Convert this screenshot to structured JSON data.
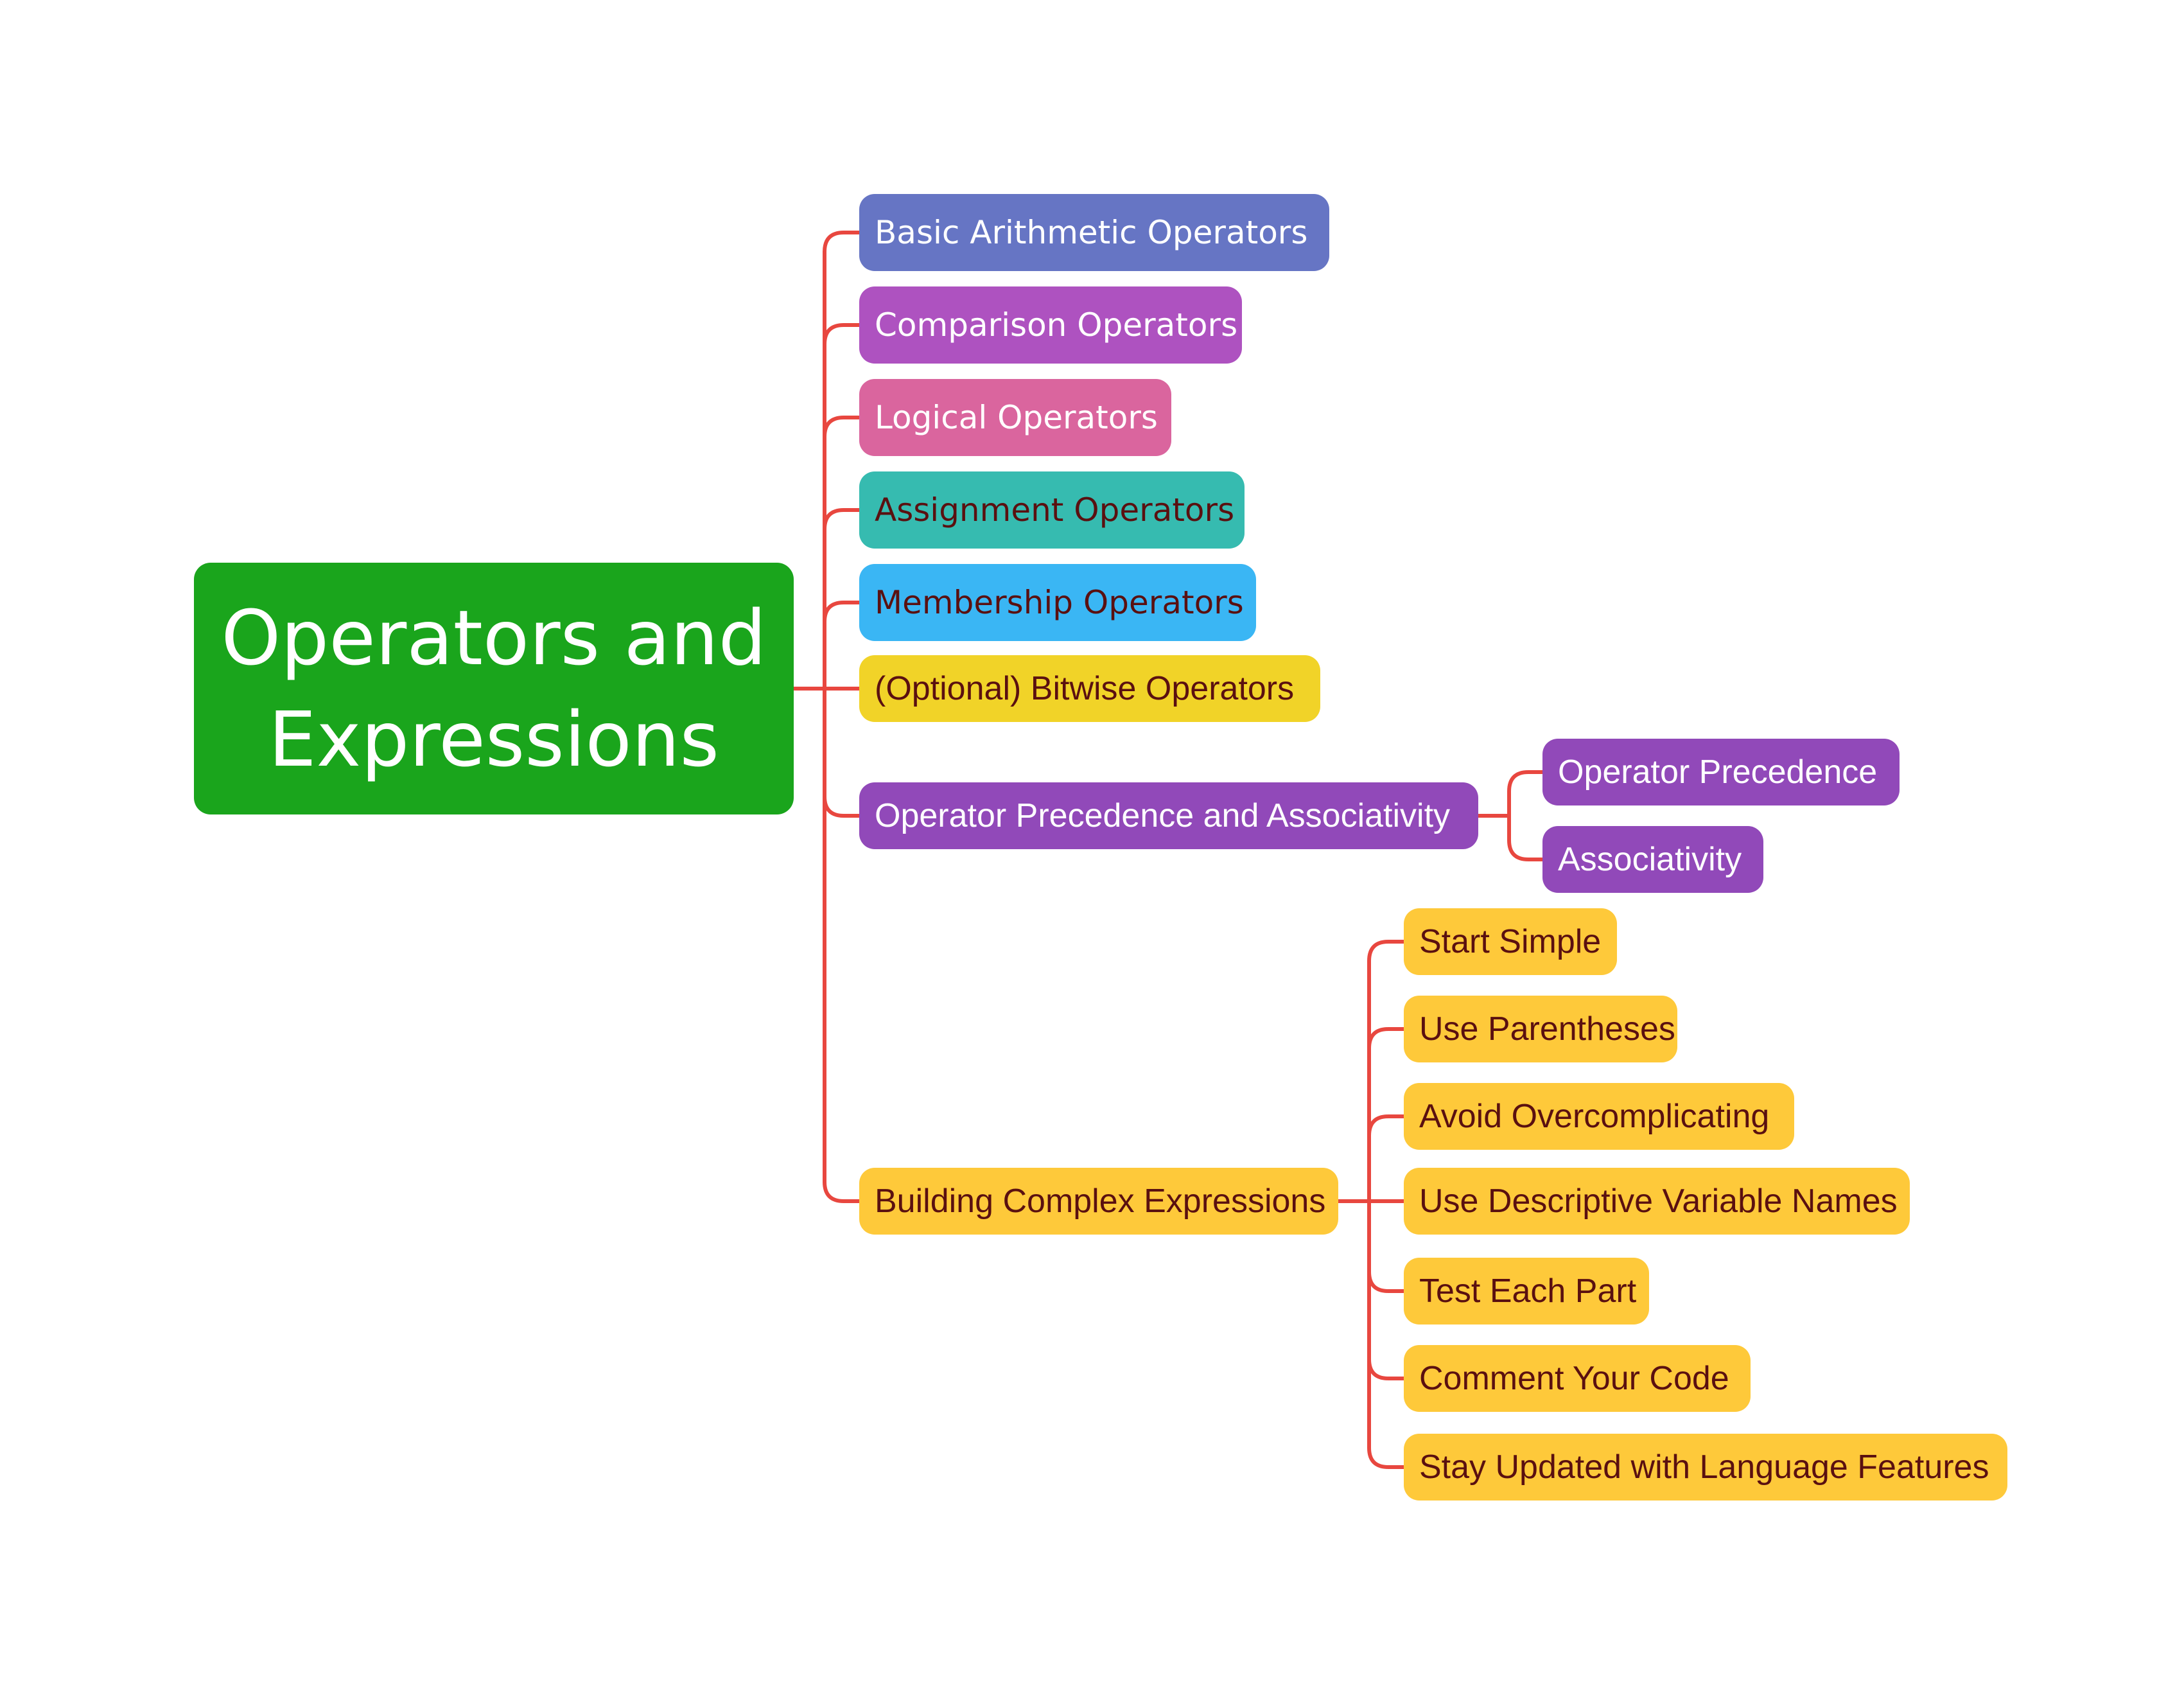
{
  "diagram": {
    "type": "mind-map",
    "connector_color": "#e8473f",
    "root": {
      "label": "Operators and Expressions",
      "color": "#1aa51c"
    },
    "branches": [
      {
        "label": "Basic Arithmetic Operators",
        "color": "#6675c4"
      },
      {
        "label": "Comparison Operators",
        "color": "#ae52c0"
      },
      {
        "label": "Logical Operators",
        "color": "#da659e"
      },
      {
        "label": "Assignment Operators",
        "color": "#36bbb0"
      },
      {
        "label": "Membership Operators",
        "color": "#3ab6f4"
      },
      {
        "label": "(Optional) Bitwise Operators",
        "color": "#f1d328"
      },
      {
        "label": "Operator Precedence and Associativity",
        "color": "#9149b9",
        "children": [
          "Operator Precedence",
          "Associativity"
        ]
      },
      {
        "label": "Building Complex Expressions",
        "color": "#fec93a",
        "children": [
          "Start Simple",
          "Use Parentheses",
          "Avoid Overcomplicating",
          "Use Descriptive Variable Names",
          "Test Each Part",
          "Comment Your Code",
          "Stay Updated with Language Features"
        ]
      }
    ]
  }
}
